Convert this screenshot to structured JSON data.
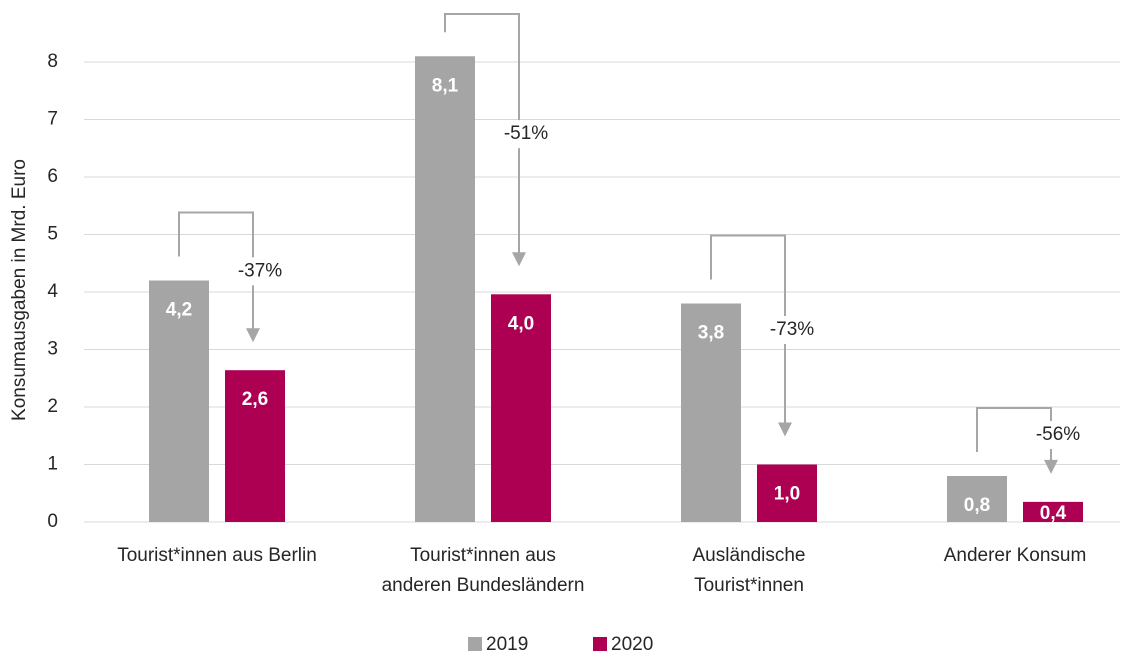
{
  "chart_data": {
    "type": "bar",
    "y_label": "Konsumausgaben in Mrd. Euro",
    "categories": [
      [
        "Tourist*innen aus Berlin"
      ],
      [
        "Tourist*innen aus",
        "anderen Bundesländern"
      ],
      [
        "Ausländische",
        "Tourist*innen"
      ],
      [
        "Anderer Konsum"
      ]
    ],
    "series": [
      {
        "name": "2019",
        "color": "#a5a5a5",
        "values": [
          4.2,
          8.1,
          3.8,
          0.8
        ],
        "value_labels": [
          "4,2",
          "8,1",
          "3,8",
          "0,8"
        ]
      },
      {
        "name": "2020",
        "color": "#ad0052",
        "values": [
          2.64,
          3.96,
          1.0,
          0.35
        ],
        "value_labels": [
          "2,6",
          "4,0",
          "1,0",
          "0,4"
        ]
      }
    ],
    "annotations": [
      "-37%",
      "-51%",
      "-73%",
      "-56%"
    ],
    "ylim": [
      0,
      8
    ],
    "yticks": [
      0,
      1,
      2,
      3,
      4,
      5,
      6,
      7,
      8
    ],
    "grid": true,
    "legend": "bottom"
  }
}
